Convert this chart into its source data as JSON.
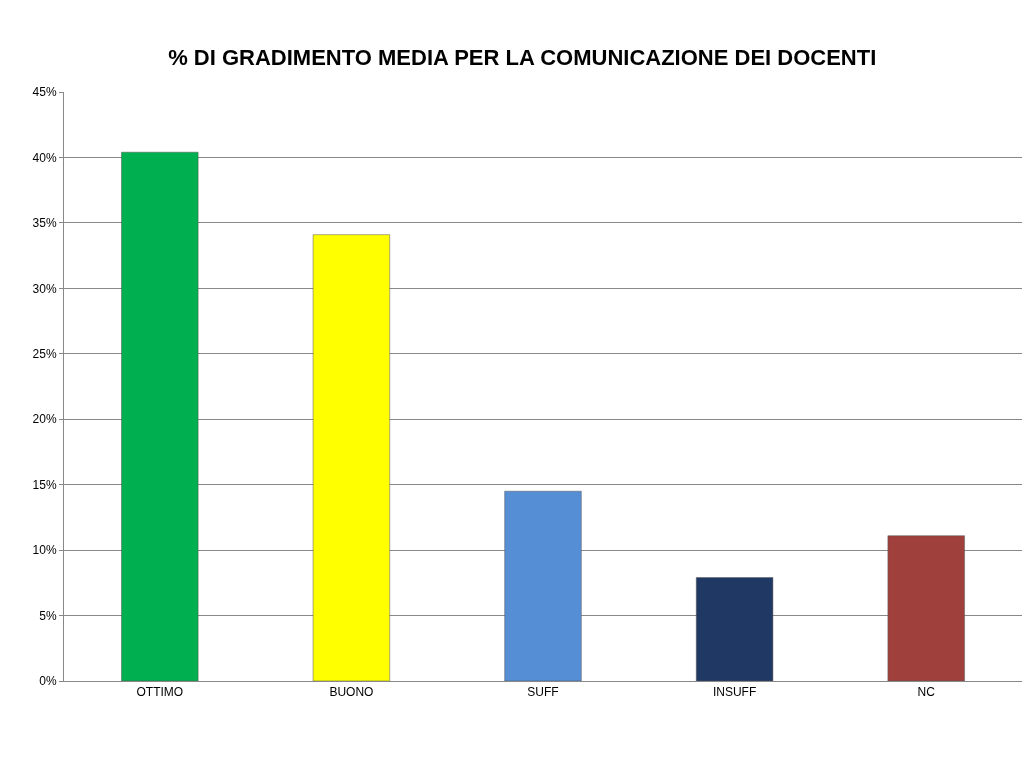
{
  "chart_data": {
    "type": "bar",
    "title": "% DI GRADIMENTO MEDIA PER LA COMUNICAZIONE DEI DOCENTI",
    "categories": [
      "OTTIMO",
      "BUONO",
      "SUFF",
      "INSUFF",
      "NC"
    ],
    "values": [
      40.4,
      34.1,
      14.5,
      7.9,
      11.1
    ],
    "colors": [
      "#00b050",
      "#ffff00",
      "#558ed5",
      "#1f3864",
      "#a0403d"
    ],
    "ylim": [
      0,
      45
    ],
    "yticks": [
      {
        "value": 0,
        "label": "0%"
      },
      {
        "value": 5,
        "label": "5%"
      },
      {
        "value": 10,
        "label": "10%"
      },
      {
        "value": 15,
        "label": "15%"
      },
      {
        "value": 20,
        "label": "20%"
      },
      {
        "value": 25,
        "label": "25%"
      },
      {
        "value": 30,
        "label": "30%"
      },
      {
        "value": 35,
        "label": "35%"
      },
      {
        "value": 40,
        "label": "40%"
      },
      {
        "value": 45,
        "label": "45%"
      }
    ],
    "grid": "y"
  }
}
